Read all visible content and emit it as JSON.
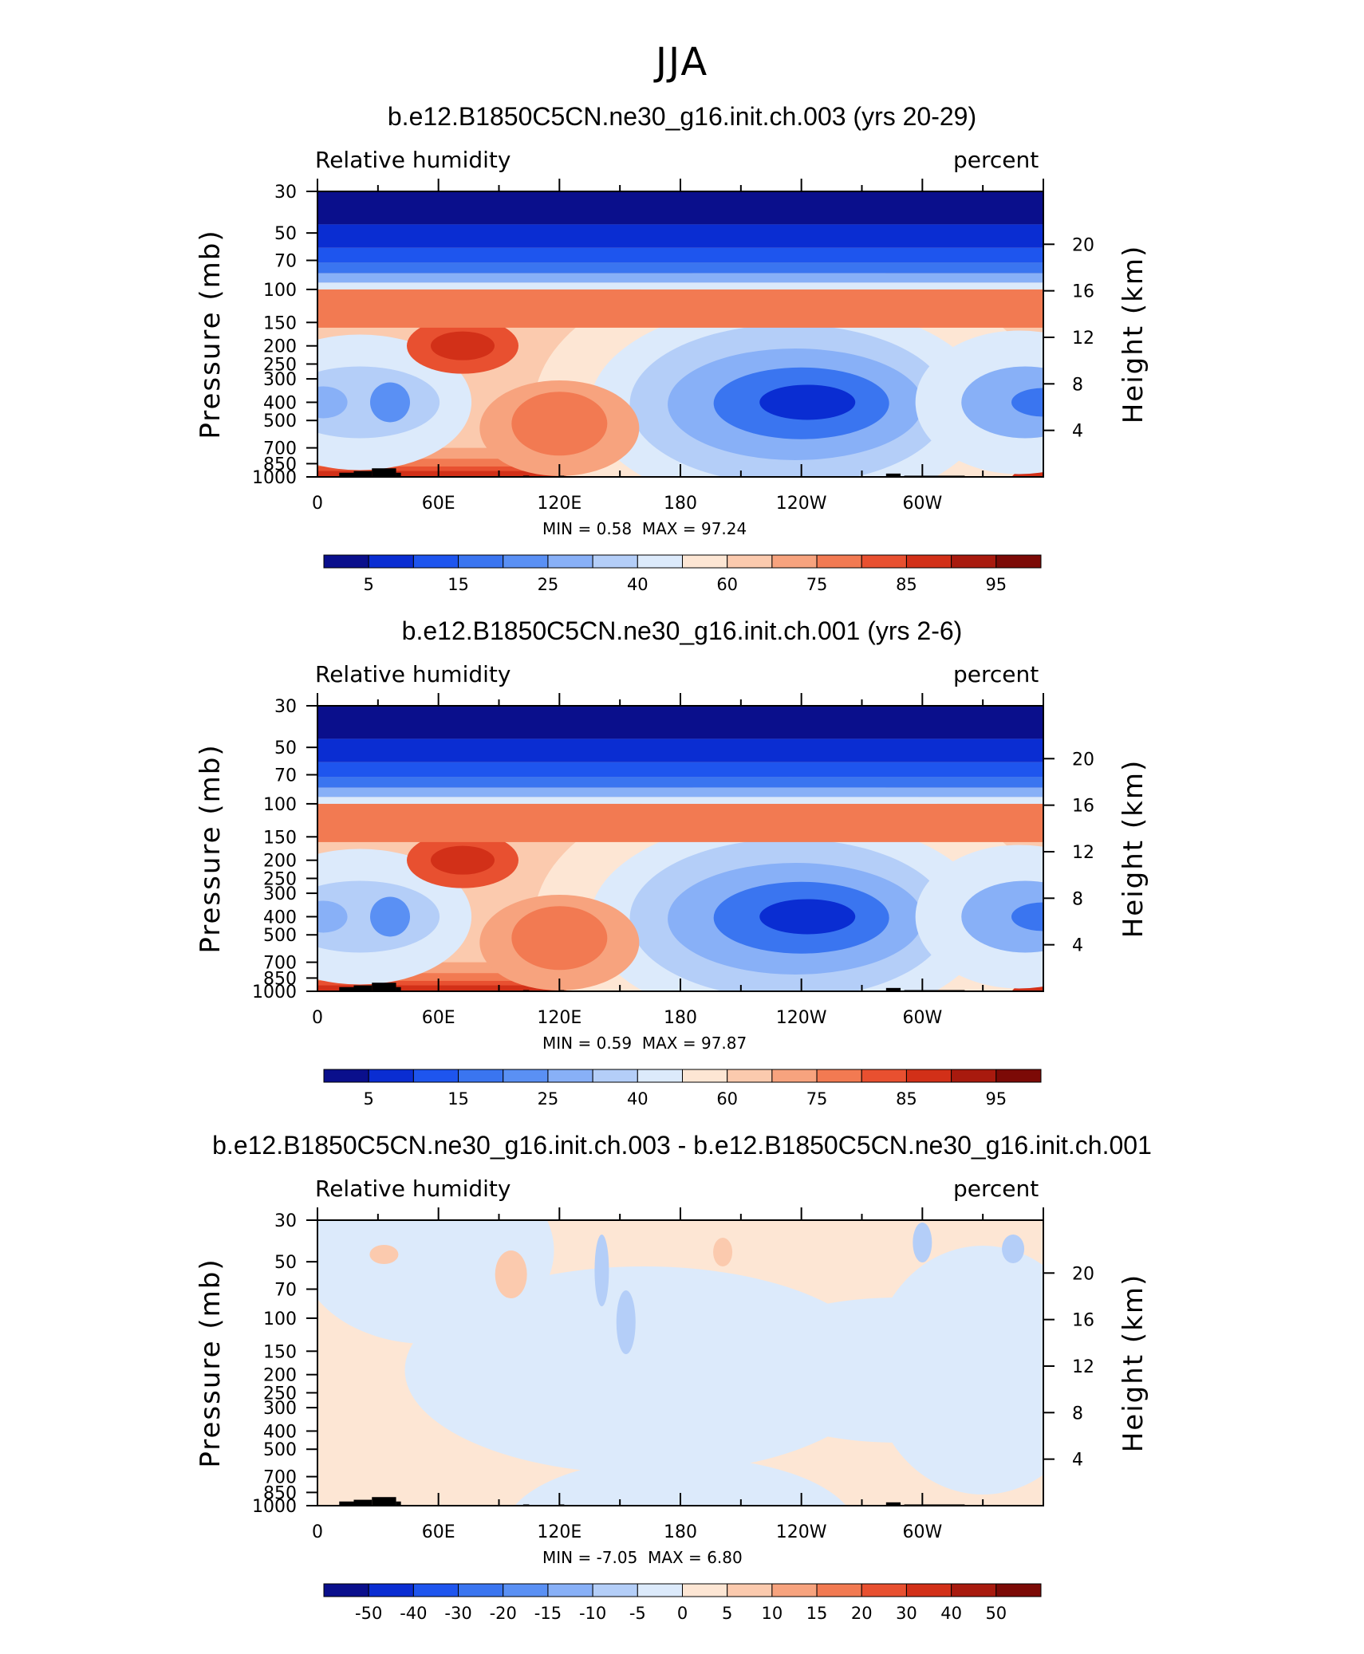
{
  "figure_title": "JJA",
  "chart_data": [
    {
      "type": "contour",
      "title": "b.e12.B1850C5CN.ne30_g16.init.ch.003 (yrs 20-29)",
      "left_label": "Relative humidity",
      "right_label": "percent",
      "ylabel": "Pressure (mb)",
      "ylabel_right": "Height (km)",
      "x_ticks": [
        "0",
        "60E",
        "120E",
        "180",
        "120W",
        "60W"
      ],
      "y_ticks": [
        "30",
        "50",
        "70",
        "100",
        "150",
        "200",
        "250",
        "300",
        "400",
        "500",
        "700",
        "850",
        "1000"
      ],
      "y_ticks_right": [
        "20",
        "16",
        "12",
        "8",
        "4"
      ],
      "min_label": "MIN =",
      "min_value": "0.58",
      "max_label": "MAX =",
      "max_value": "97.24",
      "colorbar_labels": [
        "5",
        "15",
        "25",
        "40",
        "60",
        "75",
        "85",
        "95"
      ],
      "colors": [
        "#0a0f8c",
        "#0a2dd2",
        "#1e55ee",
        "#3a75f0",
        "#5a90f4",
        "#88b0f7",
        "#b4cef8",
        "#dceafb",
        "#fde6d4",
        "#fbcaae",
        "#f7a37e",
        "#f27a52",
        "#e85030",
        "#d23018",
        "#a81a0e",
        "#7c0a06"
      ]
    },
    {
      "type": "contour",
      "title": "b.e12.B1850C5CN.ne30_g16.init.ch.001 (yrs 2-6)",
      "left_label": "Relative humidity",
      "right_label": "percent",
      "ylabel": "Pressure (mb)",
      "ylabel_right": "Height (km)",
      "x_ticks": [
        "0",
        "60E",
        "120E",
        "180",
        "120W",
        "60W"
      ],
      "y_ticks": [
        "30",
        "50",
        "70",
        "100",
        "150",
        "200",
        "250",
        "300",
        "400",
        "500",
        "700",
        "850",
        "1000"
      ],
      "y_ticks_right": [
        "20",
        "16",
        "12",
        "8",
        "4"
      ],
      "min_label": "MIN =",
      "min_value": "0.59",
      "max_label": "MAX =",
      "max_value": "97.87",
      "colorbar_labels": [
        "5",
        "15",
        "25",
        "40",
        "60",
        "75",
        "85",
        "95"
      ],
      "colors": [
        "#0a0f8c",
        "#0a2dd2",
        "#1e55ee",
        "#3a75f0",
        "#5a90f4",
        "#88b0f7",
        "#b4cef8",
        "#dceafb",
        "#fde6d4",
        "#fbcaae",
        "#f7a37e",
        "#f27a52",
        "#e85030",
        "#d23018",
        "#a81a0e",
        "#7c0a06"
      ]
    },
    {
      "type": "contour",
      "title": "b.e12.B1850C5CN.ne30_g16.init.ch.003 - b.e12.B1850C5CN.ne30_g16.init.ch.001",
      "left_label": "Relative humidity",
      "right_label": "percent",
      "ylabel": "Pressure (mb)",
      "ylabel_right": "Height (km)",
      "x_ticks": [
        "0",
        "60E",
        "120E",
        "180",
        "120W",
        "60W"
      ],
      "y_ticks": [
        "30",
        "50",
        "70",
        "100",
        "150",
        "200",
        "250",
        "300",
        "400",
        "500",
        "700",
        "850",
        "1000"
      ],
      "y_ticks_right": [
        "20",
        "16",
        "12",
        "8",
        "4"
      ],
      "min_label": "MIN =",
      "min_value": "-7.05",
      "max_label": "MAX =",
      "max_value": "6.80",
      "colorbar_labels": [
        "-50",
        "-40",
        "-30",
        "-20",
        "-15",
        "-10",
        "-5",
        "0",
        "5",
        "10",
        "15",
        "20",
        "30",
        "40",
        "50"
      ],
      "colors": [
        "#0a0f8c",
        "#0a2dd2",
        "#1e55ee",
        "#3a75f0",
        "#5a90f4",
        "#88b0f7",
        "#b4cef8",
        "#dceafb",
        "#fde6d4",
        "#fbcaae",
        "#f7a37e",
        "#f27a52",
        "#e85030",
        "#d23018",
        "#a81a0e",
        "#7c0a06"
      ]
    }
  ]
}
